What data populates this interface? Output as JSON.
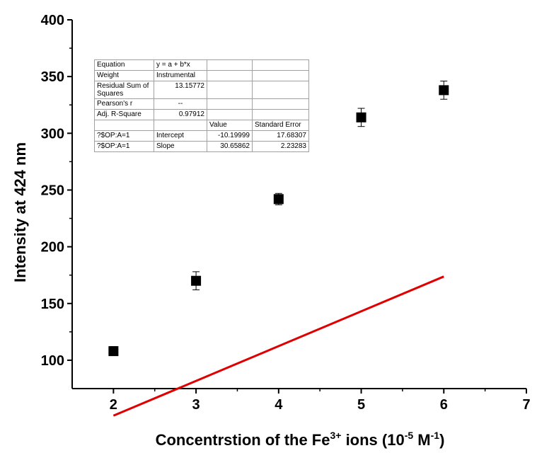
{
  "chart_data": {
    "type": "scatter",
    "xlabel_parts": {
      "base": "Concentrstion of the Fe",
      "sup1": "3+",
      "mid": " ions (10",
      "sup2": "-5",
      "mid2": " M",
      "sup3": "-1",
      "end": ")"
    },
    "ylabel": "Intensity at 424 nm",
    "xlim": [
      1.5,
      7
    ],
    "ylim": [
      75,
      400
    ],
    "xticks": [
      2,
      3,
      4,
      5,
      6,
      7
    ],
    "yticks": [
      100,
      150,
      200,
      250,
      300,
      350,
      400
    ],
    "grid": false,
    "points": [
      {
        "x": 2,
        "y": 108,
        "err": 4
      },
      {
        "x": 3,
        "y": 170,
        "err": 8
      },
      {
        "x": 4,
        "y": 242,
        "err": 5
      },
      {
        "x": 5,
        "y": 314,
        "err": 8
      },
      {
        "x": 6,
        "y": 338,
        "err": 8
      }
    ],
    "fit_line": {
      "x_start": 2,
      "x_end": 6,
      "intercept": -10.19999,
      "slope": 30.65862,
      "color": "#e00000"
    },
    "marker_color": "#000000",
    "fit_table": {
      "rows": [
        [
          "Equation",
          "y = a + b*x",
          "",
          ""
        ],
        [
          "Weight",
          "Instrumental",
          "",
          ""
        ],
        [
          "Residual Sum of Squares",
          "13.15772",
          "",
          ""
        ],
        [
          "Pearson's r",
          "--",
          "",
          ""
        ],
        [
          "Adj. R-Square",
          "0.97912",
          "",
          ""
        ],
        [
          "",
          "",
          "Value",
          "Standard Error"
        ],
        [
          "?$OP:A=1",
          "Intercept",
          "-10.19999",
          "17.68307"
        ],
        [
          "?$OP:A=1",
          "Slope",
          "30.65862",
          "2.23283"
        ]
      ]
    }
  }
}
